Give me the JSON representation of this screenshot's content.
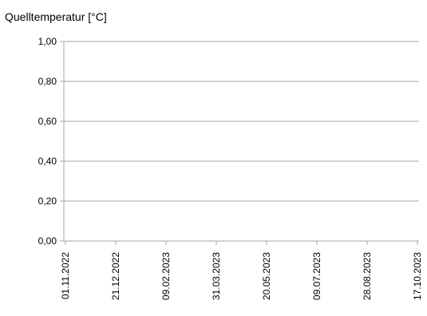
{
  "chart_data": {
    "type": "line",
    "title": "Quelltemperatur [°C]",
    "xlabel": "",
    "ylabel": "",
    "ylim": [
      0,
      1
    ],
    "y_ticks": [
      "0,00",
      "0,20",
      "0,40",
      "0,60",
      "0,80",
      "1,00"
    ],
    "x_ticks": [
      "01.11.2022",
      "21.12.2022",
      "09.02.2023",
      "31.03.2023",
      "20.05.2023",
      "09.07.2023",
      "28.08.2023",
      "17.10.2023"
    ],
    "grid": true,
    "legend": "none",
    "series": [],
    "colors": {
      "grid": "#a6a6a6",
      "axis": "#a6a6a6",
      "text": "#000000"
    }
  }
}
